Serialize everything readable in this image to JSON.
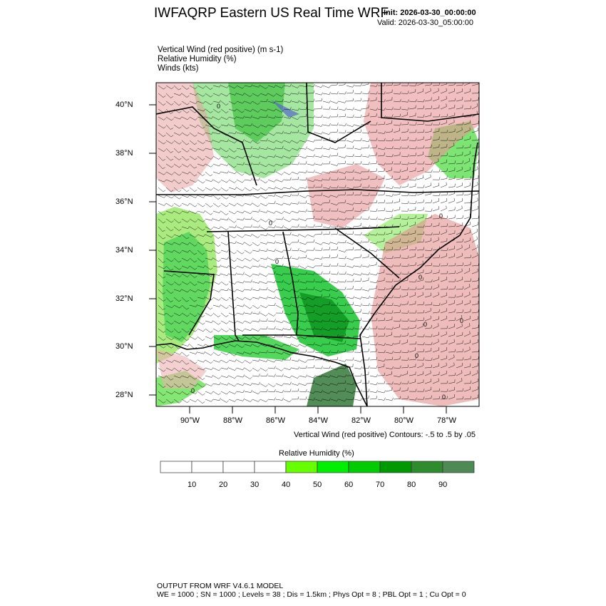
{
  "header": {
    "title": "IWFAQRP Eastern US Real Time WRF",
    "init": "Init: 2026-03-30_00:00:00",
    "valid": "Valid: 2026-03-30_05:00:00"
  },
  "fields": [
    "Vertical Wind (red positive)   (m s-1)",
    "Relative Humidity   (%)",
    "Winds   (kts)"
  ],
  "map": {
    "lat_labels": [
      "40°N",
      "38°N",
      "36°N",
      "34°N",
      "32°N",
      "30°N",
      "28°N"
    ],
    "lon_labels": [
      "90°W",
      "88°W",
      "86°W",
      "84°W",
      "82°W",
      "80°W",
      "78°W"
    ],
    "contour_labels": [
      "0"
    ],
    "contours_note": "Vertical Wind (red positive) Contours: -.5 to .5 by .05",
    "colors": {
      "vertical_wind_positive": "#cc0000",
      "vertical_wind_negative": "#2233cc",
      "boundaries": "#000000"
    }
  },
  "colorbar": {
    "title": "Relative Humidity  (%)",
    "labels": [
      "10",
      "20",
      "30",
      "40",
      "50",
      "60",
      "70",
      "80",
      "90"
    ],
    "colors": [
      "#ffffff",
      "#ffffff",
      "#ffffff",
      "#ffffff",
      "#66ff00",
      "#00ee00",
      "#00cc00",
      "#009900",
      "#2e8b2e",
      "#4f8a55"
    ]
  },
  "footer": {
    "line1": "OUTPUT FROM WRF V4.6.1 MODEL",
    "line2": "WE = 1000 ; SN = 1000 ; Levels = 38 ; Dis = 1.5km ; Phys Opt = 8 ; PBL Opt = 1 ; Cu Opt = 0"
  }
}
